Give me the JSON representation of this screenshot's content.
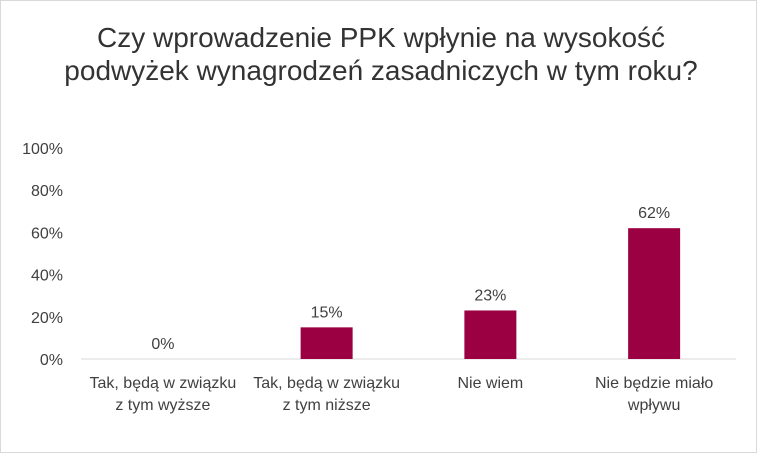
{
  "chart_data": {
    "type": "bar",
    "title": "Czy wprowadzenie PPK wpłynie na wysokość podwyżek wynagrodzeń zasadniczych w tym roku?",
    "categories": [
      "Tak, będą w związku z tym wyższe",
      "Tak, będą w związku z tym niższe",
      "Nie wiem",
      "Nie będzie miało wpływu"
    ],
    "values": [
      0,
      15,
      23,
      62
    ],
    "data_labels": [
      "0%",
      "15%",
      "23%",
      "62%"
    ],
    "ylim": [
      0,
      100
    ],
    "yticks": [
      "0%",
      "20%",
      "40%",
      "60%",
      "80%",
      "100%"
    ],
    "ytick_values": [
      0,
      20,
      40,
      60,
      80,
      100
    ],
    "grid": false,
    "legend": "none",
    "colors": {
      "bar": "#9b0042",
      "axis": "#d9d9d9",
      "text": "#404040"
    }
  }
}
